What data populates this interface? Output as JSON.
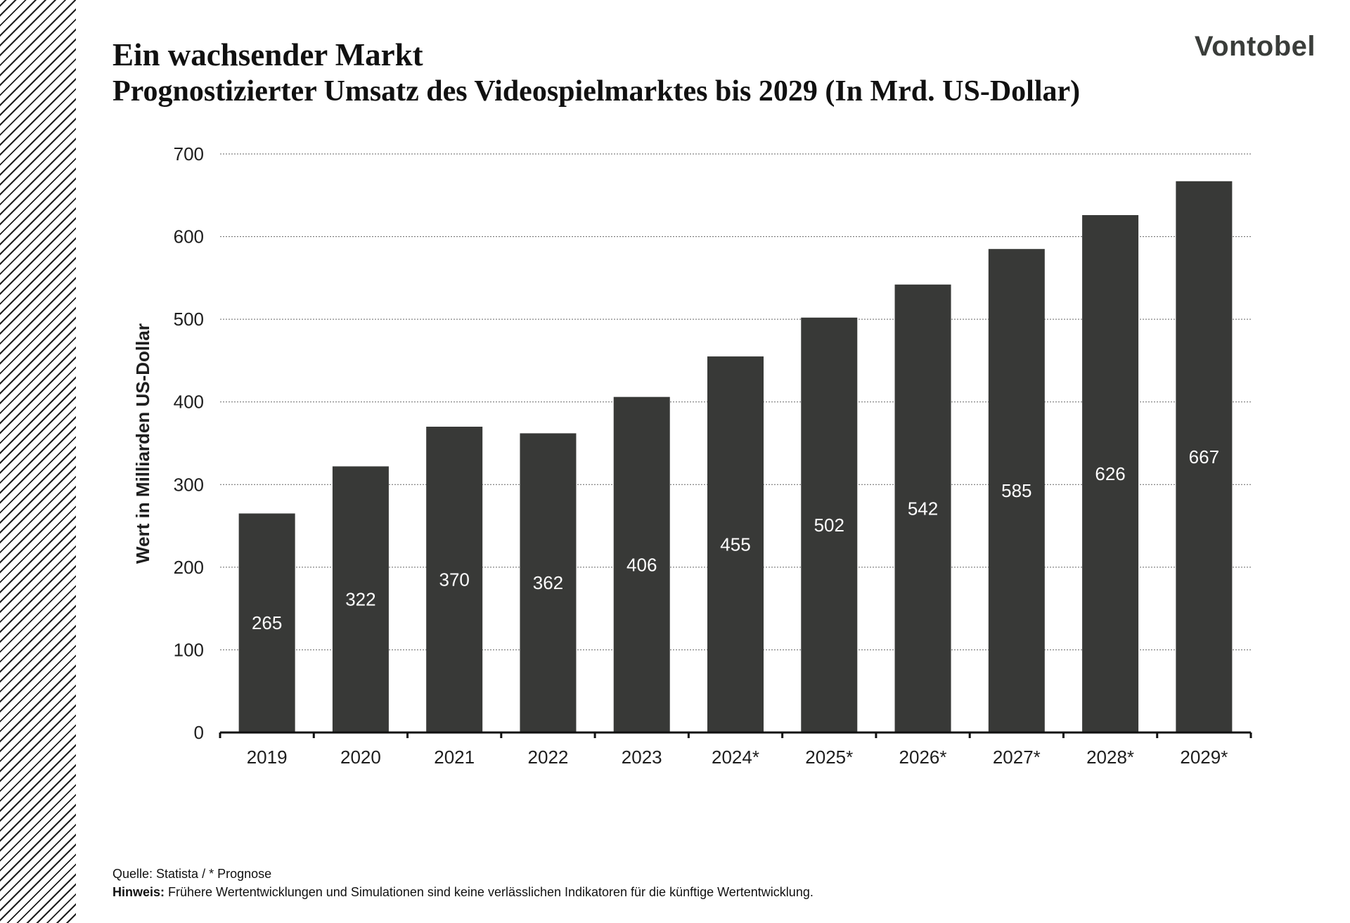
{
  "header": {
    "title": "Ein wachsender Markt",
    "subtitle": "Prognostizierter Umsatz des Videospielmarktes bis 2029 (In Mrd. US-Dollar)",
    "logo_text": "Vontobel"
  },
  "footer": {
    "source": "Quelle: Statista / * Prognose",
    "note_label": "Hinweis:",
    "note_text": " Frühere Wertentwicklungen und Simulationen sind keine verlässlichen Indikatoren für die künftige Wertentwicklung."
  },
  "colors": {
    "bar": "#383937",
    "bar_label": "#ffffff",
    "grid": "#666666",
    "axis": "#111111",
    "text": "#1e1e1e"
  },
  "chart_data": {
    "type": "bar",
    "title": "",
    "xlabel": "",
    "ylabel": "Wert in Milliarden US-Dollar",
    "categories": [
      "2019",
      "2020",
      "2021",
      "2022",
      "2023",
      "2024*",
      "2025*",
      "2026*",
      "2027*",
      "2028*",
      "2029*"
    ],
    "values": [
      265,
      322,
      370,
      362,
      406,
      455,
      502,
      542,
      585,
      626,
      667
    ],
    "ylim": [
      0,
      700
    ],
    "yticks": [
      0,
      100,
      200,
      300,
      400,
      500,
      600,
      700
    ],
    "grid": "horizontal dotted",
    "legend": "none",
    "data_labels": "inside bars"
  }
}
